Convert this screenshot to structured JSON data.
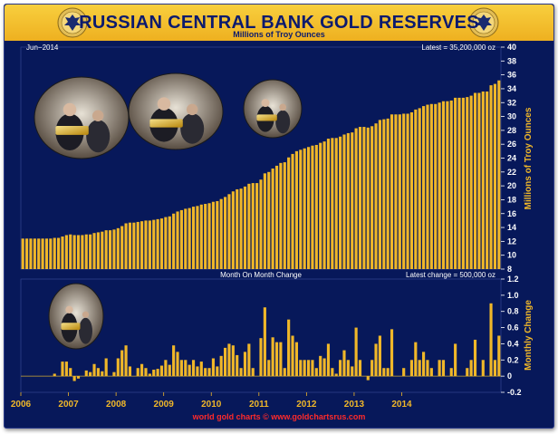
{
  "header": {
    "title": "RUSSIAN CENTRAL BANK GOLD RESERVES",
    "subtitle": "Millions of Troy Ounces",
    "emblem_text": "БАНК РОССИИ"
  },
  "footer": {
    "credit": "world gold charts © www.goldchartsrus.com"
  },
  "colors": {
    "background": "#07185a",
    "bars": "#f0b729",
    "title_band": "#f4c030",
    "credit": "#ff2a2a"
  },
  "photos": [
    {
      "name": "officials-inspecting-gold-photo"
    },
    {
      "name": "gold-bar-closeup-photo"
    },
    {
      "name": "official-pointing-photo"
    },
    {
      "name": "official-with-gold-photo"
    }
  ],
  "chart_data": [
    {
      "type": "bar",
      "title": "",
      "xlabel": "",
      "ylabel": "Millions of Troy Ounces",
      "top_left_note": "Jun−2014",
      "top_right_note": "Latest = 35,200,000 oz",
      "ylim": [
        8,
        40
      ],
      "yticks": [
        8,
        10,
        12,
        14,
        16,
        18,
        20,
        22,
        24,
        26,
        28,
        30,
        32,
        34,
        36,
        38,
        40
      ],
      "grid": false,
      "xticks": [
        "2006",
        "2007",
        "2008",
        "2009",
        "2010",
        "2011",
        "2012",
        "2013",
        "2014"
      ],
      "start": "2006-01",
      "end": "2014-06",
      "frequency": "monthly",
      "values": [
        12.4,
        12.4,
        12.4,
        12.4,
        12.4,
        12.4,
        12.4,
        12.4,
        12.5,
        12.5,
        12.7,
        12.9,
        13.0,
        12.9,
        12.9,
        12.9,
        13.0,
        13.0,
        13.2,
        13.3,
        13.4,
        13.6,
        13.6,
        13.7,
        13.9,
        14.2,
        14.6,
        14.7,
        14.7,
        14.8,
        14.9,
        15.0,
        15.0,
        15.1,
        15.2,
        15.3,
        15.5,
        15.6,
        16.0,
        16.3,
        16.5,
        16.7,
        16.8,
        17.0,
        17.1,
        17.3,
        17.4,
        17.5,
        17.7,
        17.8,
        18.1,
        18.4,
        18.8,
        19.2,
        19.5,
        19.6,
        19.9,
        20.3,
        20.4,
        20.4,
        20.9,
        21.8,
        22.0,
        22.5,
        22.9,
        23.3,
        23.4,
        24.1,
        24.6,
        25.0,
        25.2,
        25.4,
        25.6,
        25.8,
        25.9,
        26.2,
        26.4,
        26.8,
        26.9,
        26.9,
        27.1,
        27.4,
        27.6,
        27.7,
        28.3,
        28.5,
        28.5,
        28.4,
        28.6,
        29.0,
        29.5,
        29.6,
        29.7,
        30.3,
        30.3,
        30.3,
        30.4,
        30.4,
        30.6,
        31.0,
        31.2,
        31.5,
        31.7,
        31.8,
        31.8,
        32.0,
        32.2,
        32.2,
        32.3,
        32.7,
        32.7,
        32.7,
        32.8,
        33.0,
        33.4,
        33.4,
        33.6,
        33.6,
        34.5,
        34.7,
        35.2
      ]
    },
    {
      "type": "bar",
      "title": "Month On Month Change",
      "xlabel": "",
      "ylabel": "Monthly Change",
      "top_right_note": "Latest change = 500,000 oz",
      "ylim": [
        -0.2,
        1.2
      ],
      "yticks": [
        -0.2,
        0,
        0.2,
        0.4,
        0.6,
        0.8,
        1.0,
        1.2
      ],
      "ytick_labels": [
        "-0.2",
        "0",
        "0.2",
        "0.4",
        "0.6",
        "0.8",
        "1.0",
        "1.2"
      ],
      "grid": false,
      "start": "2006-01",
      "end": "2014-06",
      "frequency": "monthly",
      "values": [
        0,
        0,
        0,
        0,
        0,
        0,
        0,
        0,
        0.03,
        0,
        0.18,
        0.18,
        0.1,
        -0.06,
        -0.03,
        0,
        0.07,
        0.05,
        0.15,
        0.1,
        0.06,
        0.22,
        0,
        0.05,
        0.22,
        0.32,
        0.38,
        0.12,
        0,
        0.1,
        0.15,
        0.1,
        0.03,
        0.08,
        0.09,
        0.13,
        0.2,
        0.14,
        0.38,
        0.3,
        0.2,
        0.2,
        0.14,
        0.2,
        0.12,
        0.18,
        0.1,
        0.1,
        0.22,
        0.12,
        0.25,
        0.35,
        0.4,
        0.38,
        0.26,
        0.1,
        0.3,
        0.4,
        0.1,
        0,
        0.47,
        0.85,
        0.2,
        0.48,
        0.42,
        0.42,
        0.1,
        0.7,
        0.5,
        0.42,
        0.2,
        0.2,
        0.2,
        0.2,
        0.1,
        0.25,
        0.22,
        0.4,
        0.1,
        0.03,
        0.2,
        0.32,
        0.2,
        0.12,
        0.6,
        0.2,
        0,
        -0.05,
        0.2,
        0.4,
        0.5,
        0.1,
        0.1,
        0.58,
        0,
        0,
        0.1,
        0,
        0.2,
        0.42,
        0.2,
        0.3,
        0.2,
        0.1,
        0,
        0.2,
        0.2,
        0,
        0.1,
        0.4,
        0,
        0,
        0.1,
        0.2,
        0.45,
        0,
        0.2,
        0,
        0.9,
        0.2,
        0.5
      ]
    }
  ]
}
